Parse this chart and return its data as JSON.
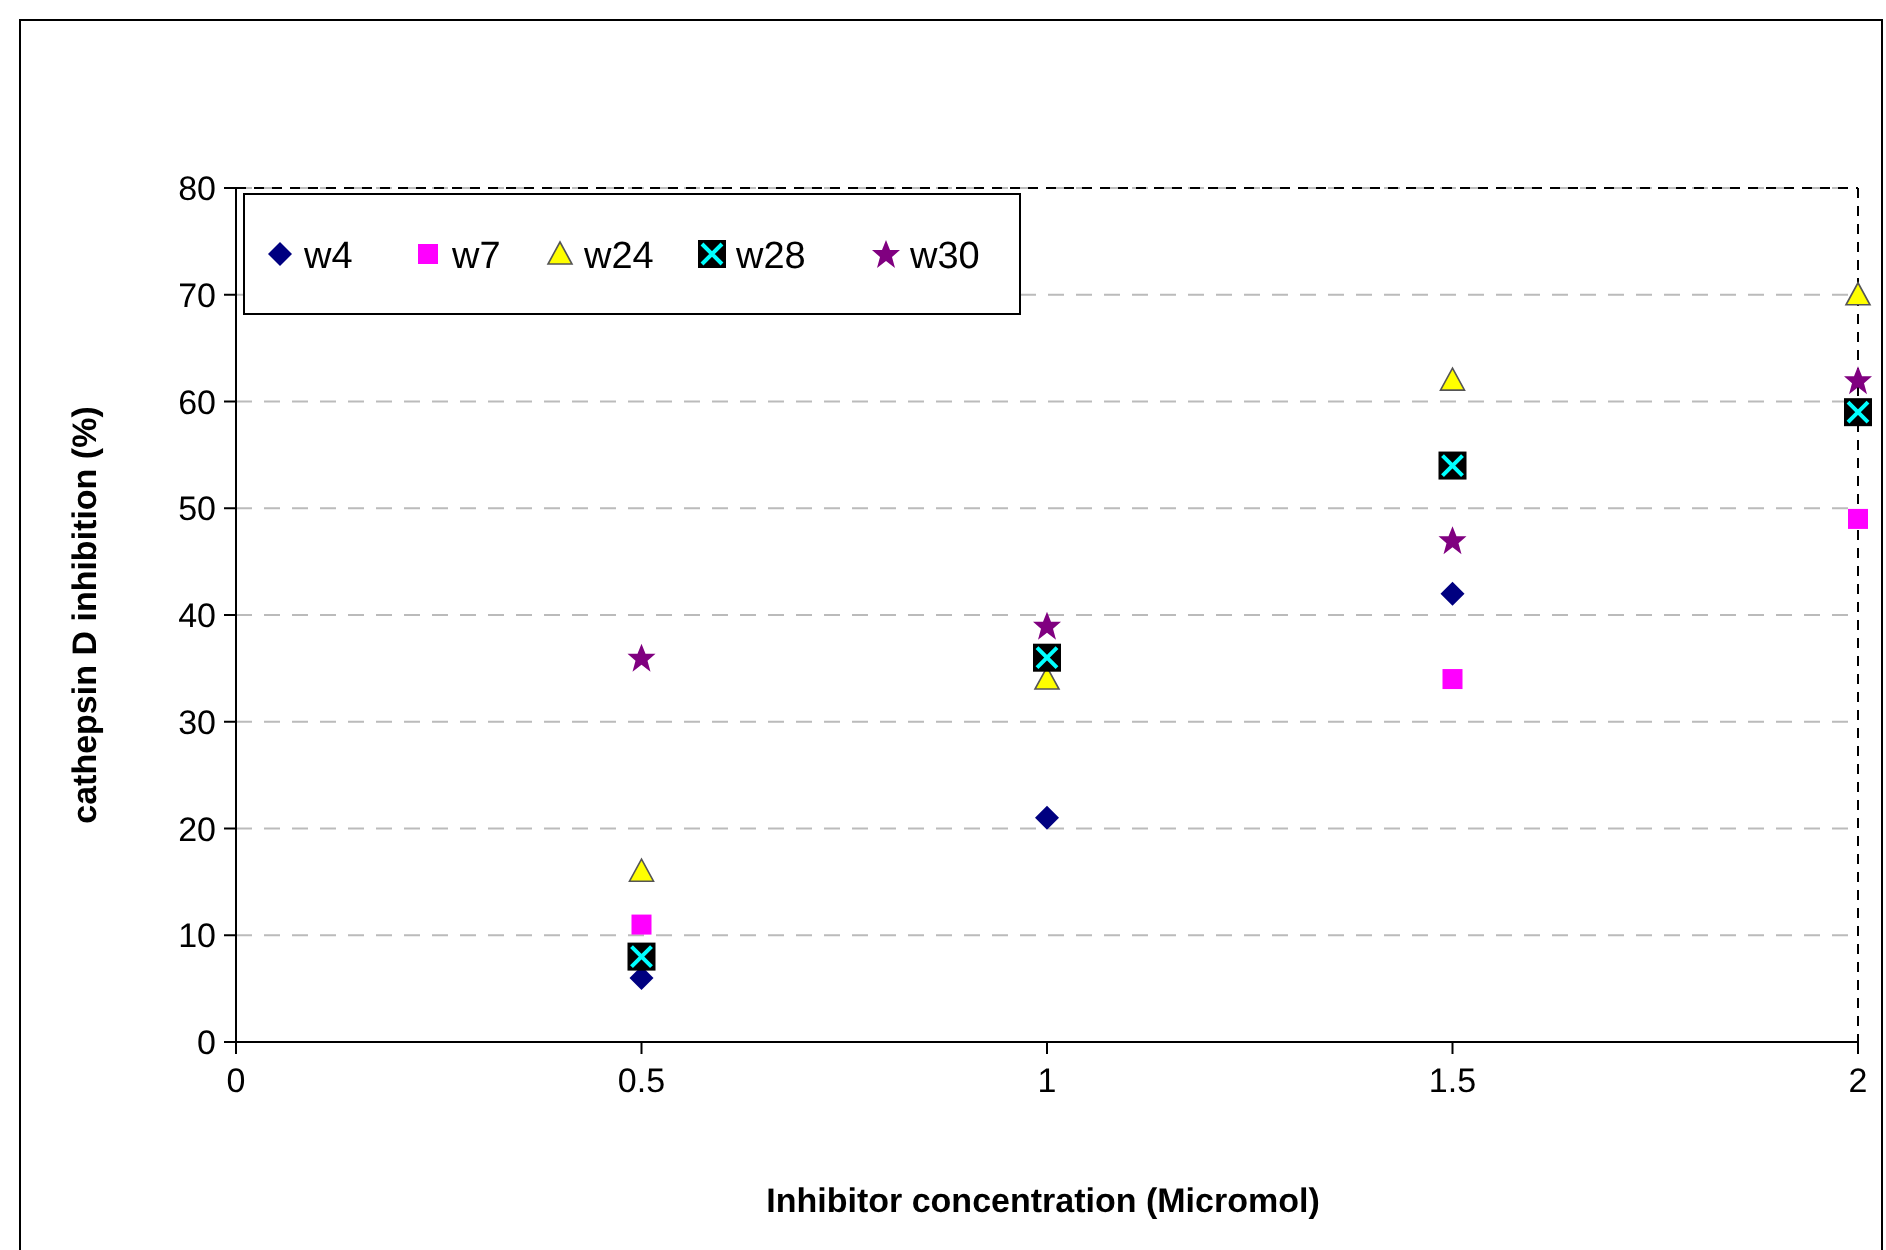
{
  "chart_data": {
    "type": "scatter",
    "xlabel": "Inhibitor concentration (Micromol)",
    "ylabel": "cathepsin D inhibition (%)",
    "x": [
      0.5,
      1,
      1.5,
      2
    ],
    "xlim": [
      0,
      2
    ],
    "xticks": [
      0,
      0.5,
      1,
      1.5,
      2
    ],
    "ylim": [
      0,
      80
    ],
    "yticks": [
      0,
      10,
      20,
      30,
      40,
      50,
      60,
      70,
      80
    ],
    "grid": "y",
    "legend": "top left",
    "series": [
      {
        "name": "w4",
        "color": "#000080",
        "marker": "diamond",
        "values": [
          6,
          21,
          42,
          null
        ]
      },
      {
        "name": "w7",
        "color": "#ff00ff",
        "marker": "square",
        "values": [
          11,
          null,
          34,
          49
        ]
      },
      {
        "name": "w24",
        "color": "#ffff00",
        "marker": "triangle",
        "values": [
          16,
          34,
          62,
          70
        ]
      },
      {
        "name": "w28",
        "color": "#00ffff",
        "marker": "cross",
        "values": [
          8,
          36,
          54,
          59
        ]
      },
      {
        "name": "w30",
        "color": "#800080",
        "marker": "star",
        "values": [
          36,
          39,
          47,
          62
        ]
      }
    ]
  }
}
